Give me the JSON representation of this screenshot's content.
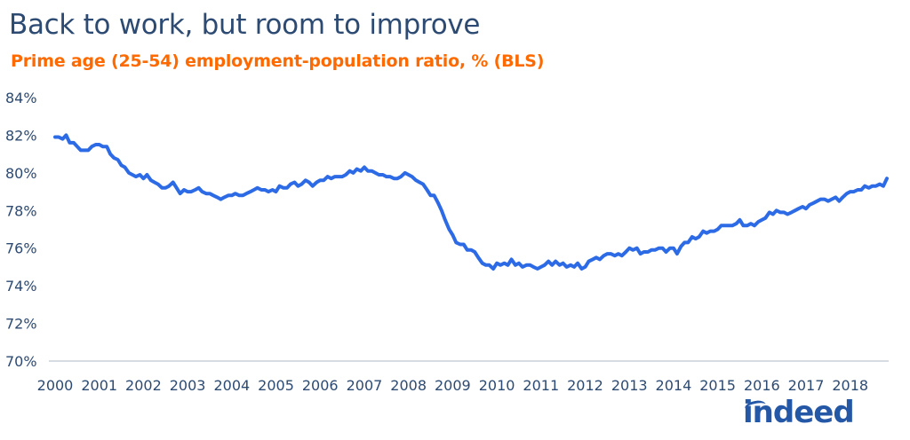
{
  "chart_data": {
    "type": "line",
    "title": "Back to work, but room to improve",
    "subtitle": "Prime age (25-54) employment-population ratio, % (BLS)",
    "xlabel": "",
    "ylabel": "",
    "x_ticks": [
      "2000",
      "2001",
      "2002",
      "2003",
      "2004",
      "2005",
      "2006",
      "2007",
      "2008",
      "2009",
      "2010",
      "2011",
      "2012",
      "2013",
      "2014",
      "2015",
      "2016",
      "2017",
      "2018"
    ],
    "y_ticks": [
      "70%",
      "72%",
      "74%",
      "76%",
      "78%",
      "80%",
      "82%",
      "84%"
    ],
    "xlim": [
      2000.0,
      2018.83
    ],
    "ylim": [
      70,
      84
    ],
    "grid": false,
    "line_color": "#2d6be6",
    "series": [
      {
        "name": "Prime age (25-54) employment-population ratio",
        "x": [
          2000.0,
          2000.08,
          2000.17,
          2000.25,
          2000.33,
          2000.42,
          2000.5,
          2000.58,
          2000.67,
          2000.75,
          2000.83,
          2000.92,
          2001.0,
          2001.08,
          2001.17,
          2001.25,
          2001.33,
          2001.42,
          2001.5,
          2001.58,
          2001.67,
          2001.75,
          2001.83,
          2001.92,
          2002.0,
          2002.08,
          2002.17,
          2002.25,
          2002.33,
          2002.42,
          2002.5,
          2002.58,
          2002.67,
          2002.75,
          2002.83,
          2002.92,
          2003.0,
          2003.08,
          2003.17,
          2003.25,
          2003.33,
          2003.42,
          2003.5,
          2003.58,
          2003.67,
          2003.75,
          2003.83,
          2003.92,
          2004.0,
          2004.08,
          2004.17,
          2004.25,
          2004.33,
          2004.42,
          2004.5,
          2004.58,
          2004.67,
          2004.75,
          2004.83,
          2004.92,
          2005.0,
          2005.08,
          2005.17,
          2005.25,
          2005.33,
          2005.42,
          2005.5,
          2005.58,
          2005.67,
          2005.75,
          2005.83,
          2005.92,
          2006.0,
          2006.08,
          2006.17,
          2006.25,
          2006.33,
          2006.42,
          2006.5,
          2006.58,
          2006.67,
          2006.75,
          2006.83,
          2006.92,
          2007.0,
          2007.08,
          2007.17,
          2007.25,
          2007.33,
          2007.42,
          2007.5,
          2007.58,
          2007.67,
          2007.75,
          2007.83,
          2007.92,
          2008.0,
          2008.08,
          2008.17,
          2008.25,
          2008.33,
          2008.42,
          2008.5,
          2008.58,
          2008.67,
          2008.75,
          2008.83,
          2008.92,
          2009.0,
          2009.08,
          2009.17,
          2009.25,
          2009.33,
          2009.42,
          2009.5,
          2009.58,
          2009.67,
          2009.75,
          2009.83,
          2009.92,
          2010.0,
          2010.08,
          2010.17,
          2010.25,
          2010.33,
          2010.42,
          2010.5,
          2010.58,
          2010.67,
          2010.75,
          2010.83,
          2010.92,
          2011.0,
          2011.08,
          2011.17,
          2011.25,
          2011.33,
          2011.42,
          2011.5,
          2011.58,
          2011.67,
          2011.75,
          2011.83,
          2011.92,
          2012.0,
          2012.08,
          2012.17,
          2012.25,
          2012.33,
          2012.42,
          2012.5,
          2012.58,
          2012.67,
          2012.75,
          2012.83,
          2012.92,
          2013.0,
          2013.08,
          2013.17,
          2013.25,
          2013.33,
          2013.42,
          2013.5,
          2013.58,
          2013.67,
          2013.75,
          2013.83,
          2013.92,
          2014.0,
          2014.08,
          2014.17,
          2014.25,
          2014.33,
          2014.42,
          2014.5,
          2014.58,
          2014.67,
          2014.75,
          2014.83,
          2014.92,
          2015.0,
          2015.08,
          2015.17,
          2015.25,
          2015.33,
          2015.42,
          2015.5,
          2015.58,
          2015.67,
          2015.75,
          2015.83,
          2015.92,
          2016.0,
          2016.08,
          2016.17,
          2016.25,
          2016.33,
          2016.42,
          2016.5,
          2016.58,
          2016.67,
          2016.75,
          2016.83,
          2016.92,
          2017.0,
          2017.08,
          2017.17,
          2017.25,
          2017.33,
          2017.42,
          2017.5,
          2017.58,
          2017.67,
          2017.75,
          2017.83,
          2017.92,
          2018.0,
          2018.08,
          2018.17,
          2018.25,
          2018.33,
          2018.42,
          2018.5,
          2018.58,
          2018.67,
          2018.75,
          2018.83
        ],
        "values": [
          81.9,
          81.9,
          81.8,
          82.0,
          81.6,
          81.6,
          81.4,
          81.2,
          81.2,
          81.2,
          81.4,
          81.5,
          81.5,
          81.4,
          81.4,
          81.0,
          80.8,
          80.7,
          80.4,
          80.3,
          80.0,
          79.9,
          79.8,
          79.9,
          79.7,
          79.9,
          79.6,
          79.5,
          79.4,
          79.2,
          79.2,
          79.3,
          79.5,
          79.2,
          78.9,
          79.1,
          79.0,
          79.0,
          79.1,
          79.2,
          79.0,
          78.9,
          78.9,
          78.8,
          78.7,
          78.6,
          78.7,
          78.8,
          78.8,
          78.9,
          78.8,
          78.8,
          78.9,
          79.0,
          79.1,
          79.2,
          79.1,
          79.1,
          79.0,
          79.1,
          79.0,
          79.3,
          79.2,
          79.2,
          79.4,
          79.5,
          79.3,
          79.4,
          79.6,
          79.5,
          79.3,
          79.5,
          79.6,
          79.6,
          79.8,
          79.7,
          79.8,
          79.8,
          79.8,
          79.9,
          80.1,
          80.0,
          80.2,
          80.1,
          80.3,
          80.1,
          80.1,
          80.0,
          79.9,
          79.9,
          79.8,
          79.8,
          79.7,
          79.7,
          79.8,
          80.0,
          79.9,
          79.8,
          79.6,
          79.5,
          79.4,
          79.1,
          78.8,
          78.8,
          78.4,
          78.0,
          77.5,
          77.0,
          76.7,
          76.3,
          76.2,
          76.2,
          75.9,
          75.9,
          75.8,
          75.5,
          75.2,
          75.1,
          75.1,
          74.9,
          75.2,
          75.1,
          75.2,
          75.1,
          75.4,
          75.1,
          75.2,
          75.0,
          75.1,
          75.1,
          75.0,
          74.9,
          75.0,
          75.1,
          75.3,
          75.1,
          75.3,
          75.1,
          75.2,
          75.0,
          75.1,
          75.0,
          75.2,
          74.9,
          75.0,
          75.3,
          75.4,
          75.5,
          75.4,
          75.6,
          75.7,
          75.7,
          75.6,
          75.7,
          75.6,
          75.8,
          76.0,
          75.9,
          76.0,
          75.7,
          75.8,
          75.8,
          75.9,
          75.9,
          76.0,
          76.0,
          75.8,
          76.0,
          76.0,
          75.7,
          76.1,
          76.3,
          76.3,
          76.6,
          76.5,
          76.6,
          76.9,
          76.8,
          76.9,
          76.9,
          77.0,
          77.2,
          77.2,
          77.2,
          77.2,
          77.3,
          77.5,
          77.2,
          77.2,
          77.3,
          77.2,
          77.4,
          77.5,
          77.6,
          77.9,
          77.8,
          78.0,
          77.9,
          77.9,
          77.8,
          77.9,
          78.0,
          78.1,
          78.2,
          78.1,
          78.3,
          78.4,
          78.5,
          78.6,
          78.6,
          78.5,
          78.6,
          78.7,
          78.5,
          78.7,
          78.9,
          79.0,
          79.0,
          79.1,
          79.1,
          79.3,
          79.2,
          79.3,
          79.3,
          79.4,
          79.3,
          79.7
        ]
      }
    ]
  },
  "brand": {
    "logo_text": "indeed",
    "logo_color": "#2557a7"
  }
}
